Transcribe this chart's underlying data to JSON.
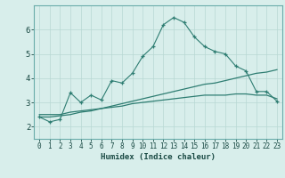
{
  "xlabel": "Humidex (Indice chaleur)",
  "x": [
    0,
    1,
    2,
    3,
    4,
    5,
    6,
    7,
    8,
    9,
    10,
    11,
    12,
    13,
    14,
    15,
    16,
    17,
    18,
    19,
    20,
    21,
    22,
    23
  ],
  "line1": [
    2.4,
    2.2,
    2.3,
    3.4,
    3.0,
    3.3,
    3.1,
    3.9,
    3.8,
    4.2,
    4.9,
    5.3,
    6.2,
    6.5,
    6.3,
    5.7,
    5.3,
    5.1,
    5.0,
    4.5,
    4.3,
    3.45,
    3.45,
    3.05
  ],
  "line2": [
    2.5,
    2.5,
    2.5,
    2.6,
    2.65,
    2.7,
    2.75,
    2.8,
    2.85,
    2.95,
    3.0,
    3.05,
    3.1,
    3.15,
    3.2,
    3.25,
    3.3,
    3.3,
    3.3,
    3.35,
    3.35,
    3.3,
    3.3,
    3.15
  ],
  "line3": [
    2.4,
    2.4,
    2.45,
    2.5,
    2.6,
    2.65,
    2.75,
    2.85,
    2.95,
    3.05,
    3.15,
    3.25,
    3.35,
    3.45,
    3.55,
    3.65,
    3.75,
    3.8,
    3.9,
    4.0,
    4.1,
    4.2,
    4.25,
    4.35
  ],
  "color": "#2e7d72",
  "bg_color": "#d8eeeb",
  "grid_color": "#b8d8d4",
  "ylim": [
    1.5,
    7.0
  ],
  "xlim": [
    -0.5,
    23.5
  ],
  "yticks": [
    2,
    3,
    4,
    5,
    6
  ],
  "xticks": [
    0,
    1,
    2,
    3,
    4,
    5,
    6,
    7,
    8,
    9,
    10,
    11,
    12,
    13,
    14,
    15,
    16,
    17,
    18,
    19,
    20,
    21,
    22,
    23
  ],
  "xlabel_fontsize": 6.5,
  "tick_fontsize": 5.5,
  "ytick_fontsize": 6.5
}
